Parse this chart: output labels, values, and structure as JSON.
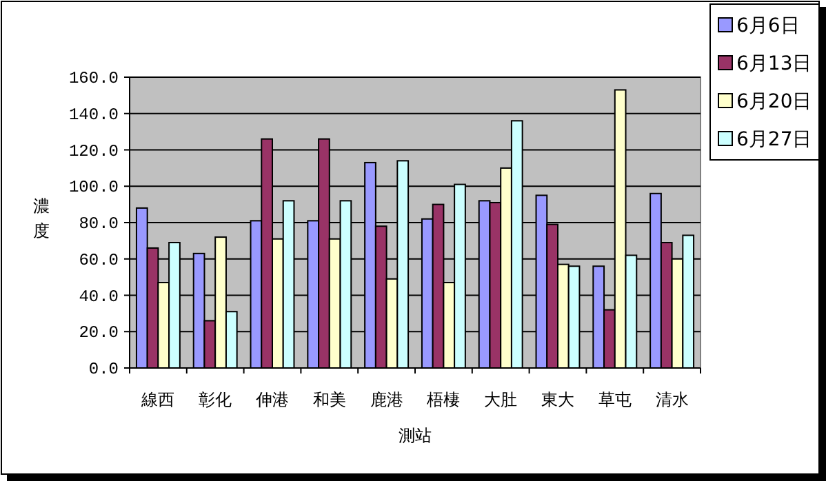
{
  "chart_data": {
    "type": "bar",
    "xlabel": "測站",
    "ylabel": "濃度",
    "categories": [
      "線西",
      "彰化",
      "伸港",
      "和美",
      "鹿港",
      "梧棲",
      "大肚",
      "東大",
      "草屯",
      "清水"
    ],
    "series": [
      {
        "name": "6月6日",
        "color": "#9999ff",
        "values": [
          88,
          63,
          81,
          81,
          113,
          82,
          92,
          95,
          56,
          96
        ]
      },
      {
        "name": "6月13日",
        "color": "#993366",
        "values": [
          66,
          26,
          126,
          126,
          78,
          90,
          91,
          79,
          32,
          69
        ]
      },
      {
        "name": "6月20日",
        "color": "#ffffcc",
        "values": [
          47,
          72,
          71,
          71,
          49,
          47,
          110,
          57,
          153,
          60
        ]
      },
      {
        "name": "6月27日",
        "color": "#ccffff",
        "values": [
          69,
          31,
          92,
          92,
          114,
          101,
          136,
          56,
          62,
          73
        ]
      }
    ],
    "ylim": [
      0,
      160
    ],
    "yticks": [
      {
        "value": 0,
        "label": "0.0"
      },
      {
        "value": 20,
        "label": "20.0"
      },
      {
        "value": 40,
        "label": "40.0"
      },
      {
        "value": 60,
        "label": "60.0"
      },
      {
        "value": 80,
        "label": "80.0"
      },
      {
        "value": 100,
        "label": "100.0"
      },
      {
        "value": 120,
        "label": "120.0"
      },
      {
        "value": 140,
        "label": "140.0"
      },
      {
        "value": 160,
        "label": "160.0"
      }
    ],
    "grid": "y",
    "legend": "right"
  }
}
